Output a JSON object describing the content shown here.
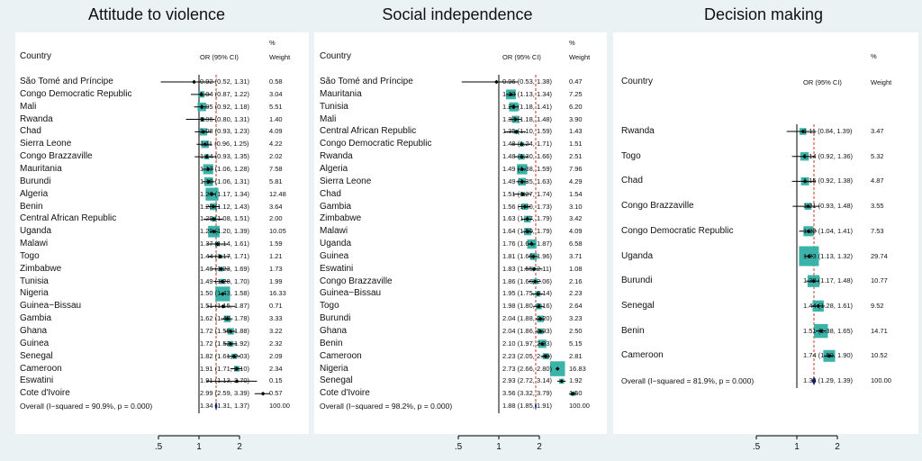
{
  "chart_data": [
    {
      "type": "forest",
      "title": "Attitude to violence",
      "columns": {
        "country": "Country",
        "or": "OR (95% CI)",
        "weight_pct": "%",
        "weight": "Weight"
      },
      "x_ticks": [
        ".5",
        "1",
        "2"
      ],
      "x_tick_values": [
        0.5,
        1,
        2
      ],
      "xlim_log": [
        0.5,
        4
      ],
      "overall_estimate": 1.34,
      "studies": [
        {
          "country": "São Tomé and Príncipe",
          "or": 0.92,
          "lo": 0.52,
          "hi": 1.31,
          "ci_text": "0.92 (0.52, 1.31)",
          "weight": "0.58"
        },
        {
          "country": "Congo Democratic Republic",
          "or": 1.04,
          "lo": 0.87,
          "hi": 1.22,
          "ci_text": "1.04 (0.87, 1.22)",
          "weight": "3.04"
        },
        {
          "country": "Mali",
          "or": 1.05,
          "lo": 0.92,
          "hi": 1.18,
          "ci_text": "1.05 (0.92, 1.18)",
          "weight": "5.51"
        },
        {
          "country": "Rwanda",
          "or": 1.06,
          "lo": 0.8,
          "hi": 1.31,
          "ci_text": "1.06 (0.80, 1.31)",
          "weight": "1.40"
        },
        {
          "country": "Chad",
          "or": 1.08,
          "lo": 0.93,
          "hi": 1.23,
          "ci_text": "1.08 (0.93, 1.23)",
          "weight": "4.09"
        },
        {
          "country": "Sierra Leone",
          "or": 1.11,
          "lo": 0.96,
          "hi": 1.25,
          "ci_text": "1.11 (0.96, 1.25)",
          "weight": "4.22"
        },
        {
          "country": "Congo Brazzaville",
          "or": 1.14,
          "lo": 0.93,
          "hi": 1.35,
          "ci_text": "1.14 (0.93, 1.35)",
          "weight": "2.02"
        },
        {
          "country": "Mauritania",
          "or": 1.17,
          "lo": 1.06,
          "hi": 1.28,
          "ci_text": "1.17 (1.06, 1.28)",
          "weight": "7.58"
        },
        {
          "country": "Burundi",
          "or": 1.18,
          "lo": 1.06,
          "hi": 1.31,
          "ci_text": "1.18 (1.06, 1.31)",
          "weight": "5.81"
        },
        {
          "country": "Algeria",
          "or": 1.25,
          "lo": 1.17,
          "hi": 1.34,
          "ci_text": "1.25 (1.17, 1.34)",
          "weight": "12.48"
        },
        {
          "country": "Benin",
          "or": 1.28,
          "lo": 1.12,
          "hi": 1.43,
          "ci_text": "1.28 (1.12, 1.43)",
          "weight": "3.64"
        },
        {
          "country": "Central African Republic",
          "or": 1.29,
          "lo": 1.08,
          "hi": 1.51,
          "ci_text": "1.29 (1.08, 1.51)",
          "weight": "2.00"
        },
        {
          "country": "Uganda",
          "or": 1.29,
          "lo": 1.2,
          "hi": 1.39,
          "ci_text": "1.29 (1.20, 1.39)",
          "weight": "10.05"
        },
        {
          "country": "Malawi",
          "or": 1.37,
          "lo": 1.14,
          "hi": 1.61,
          "ci_text": "1.37 (1.14, 1.61)",
          "weight": "1.59"
        },
        {
          "country": "Togo",
          "or": 1.44,
          "lo": 1.17,
          "hi": 1.71,
          "ci_text": "1.44 (1.17, 1.71)",
          "weight": "1.21"
        },
        {
          "country": "Zimbabwe",
          "or": 1.46,
          "lo": 1.23,
          "hi": 1.69,
          "ci_text": "1.46 (1.23, 1.69)",
          "weight": "1.73"
        },
        {
          "country": "Tunisia",
          "or": 1.49,
          "lo": 1.28,
          "hi": 1.7,
          "ci_text": "1.49 (1.28, 1.70)",
          "weight": "1.99"
        },
        {
          "country": "Nigeria",
          "or": 1.5,
          "lo": 1.43,
          "hi": 1.58,
          "ci_text": "1.50 (1.43, 1.58)",
          "weight": "16.33"
        },
        {
          "country": "Guinea−Bissau",
          "or": 1.51,
          "lo": 1.15,
          "hi": 1.87,
          "ci_text": "1.51 (1.15, 1.87)",
          "weight": "0.71"
        },
        {
          "country": "Gambia",
          "or": 1.62,
          "lo": 1.45,
          "hi": 1.78,
          "ci_text": "1.62 (1.45, 1.78)",
          "weight": "3.33"
        },
        {
          "country": "Ghana",
          "or": 1.72,
          "lo": 1.55,
          "hi": 1.88,
          "ci_text": "1.72 (1.55, 1.88)",
          "weight": "3.22"
        },
        {
          "country": "Guinea",
          "or": 1.72,
          "lo": 1.52,
          "hi": 1.92,
          "ci_text": "1.72 (1.52, 1.92)",
          "weight": "2.32"
        },
        {
          "country": "Senegal",
          "or": 1.82,
          "lo": 1.61,
          "hi": 2.03,
          "ci_text": "1.82 (1.61, 2.03)",
          "weight": "2.09"
        },
        {
          "country": "Cameroon",
          "or": 1.91,
          "lo": 1.71,
          "hi": 2.1,
          "ci_text": "1.91 (1.71, 2.10)",
          "weight": "2.34"
        },
        {
          "country": "Eswatini",
          "or": 1.91,
          "lo": 1.13,
          "hi": 2.7,
          "ci_text": "1.91 (1.13, 2.70)",
          "weight": "0.15"
        },
        {
          "country": "Cote d'Ivoire",
          "or": 2.99,
          "lo": 2.59,
          "hi": 3.39,
          "ci_text": "2.99 (2.59, 3.39)",
          "weight": "0.57"
        }
      ],
      "overall": {
        "label": "Overall  (I−squared = 90.9%, p = 0.000)",
        "or": 1.34,
        "lo": 1.31,
        "hi": 1.37,
        "ci_text": "1.34 (1.31, 1.37)",
        "weight": "100.00"
      }
    },
    {
      "type": "forest",
      "title": "Social independence",
      "columns": {
        "country": "Country",
        "or": "OR (95% CI)",
        "weight_pct": "%",
        "weight": "Weight"
      },
      "x_ticks": [
        ".5",
        "1",
        "2"
      ],
      "x_tick_values": [
        0.5,
        1,
        2
      ],
      "xlim_log": [
        0.5,
        4
      ],
      "overall_estimate": 1.88,
      "studies": [
        {
          "country": "São Tomé and Príncipe",
          "or": 0.96,
          "lo": 0.53,
          "hi": 1.38,
          "ci_text": "0.96 (0.53, 1.38)",
          "weight": "0.47"
        },
        {
          "country": "Mauritania",
          "or": 1.23,
          "lo": 1.13,
          "hi": 1.34,
          "ci_text": "1.23 (1.13, 1.34)",
          "weight": "7.25"
        },
        {
          "country": "Tunisia",
          "or": 1.29,
          "lo": 1.18,
          "hi": 1.41,
          "ci_text": "1.29 (1.18, 1.41)",
          "weight": "6.20"
        },
        {
          "country": "Mali",
          "or": 1.33,
          "lo": 1.18,
          "hi": 1.48,
          "ci_text": "1.33 (1.18, 1.48)",
          "weight": "3.90"
        },
        {
          "country": "Central African Republic",
          "or": 1.35,
          "lo": 1.1,
          "hi": 1.59,
          "ci_text": "1.35 (1.10, 1.59)",
          "weight": "1.43"
        },
        {
          "country": "Congo Democratic Republic",
          "or": 1.48,
          "lo": 1.24,
          "hi": 1.71,
          "ci_text": "1.48 (1.24, 1.71)",
          "weight": "1.51"
        },
        {
          "country": "Rwanda",
          "or": 1.48,
          "lo": 1.3,
          "hi": 1.66,
          "ci_text": "1.48 (1.30, 1.66)",
          "weight": "2.51"
        },
        {
          "country": "Algeria",
          "or": 1.49,
          "lo": 1.38,
          "hi": 1.59,
          "ci_text": "1.49 (1.38, 1.59)",
          "weight": "7.96"
        },
        {
          "country": "Sierra Leone",
          "or": 1.49,
          "lo": 1.35,
          "hi": 1.63,
          "ci_text": "1.49 (1.35, 1.63)",
          "weight": "4.29"
        },
        {
          "country": "Chad",
          "or": 1.51,
          "lo": 1.27,
          "hi": 1.74,
          "ci_text": "1.51 (1.27, 1.74)",
          "weight": "1.54"
        },
        {
          "country": "Gambia",
          "or": 1.56,
          "lo": 1.4,
          "hi": 1.73,
          "ci_text": "1.56 (1.40, 1.73)",
          "weight": "3.10"
        },
        {
          "country": "Zimbabwe",
          "or": 1.63,
          "lo": 1.47,
          "hi": 1.79,
          "ci_text": "1.63 (1.47, 1.79)",
          "weight": "3.42"
        },
        {
          "country": "Malawi",
          "or": 1.64,
          "lo": 1.5,
          "hi": 1.79,
          "ci_text": "1.64 (1.50, 1.79)",
          "weight": "4.09"
        },
        {
          "country": "Uganda",
          "or": 1.76,
          "lo": 1.64,
          "hi": 1.87,
          "ci_text": "1.76 (1.64, 1.87)",
          "weight": "6.58"
        },
        {
          "country": "Guinea",
          "or": 1.81,
          "lo": 1.66,
          "hi": 1.96,
          "ci_text": "1.81 (1.66, 1.96)",
          "weight": "3.71"
        },
        {
          "country": "Eswatini",
          "or": 1.83,
          "lo": 1.55,
          "hi": 2.11,
          "ci_text": "1.83 (1.55, 2.11)",
          "weight": "1.08"
        },
        {
          "country": "Congo Brazzaville",
          "or": 1.86,
          "lo": 1.66,
          "hi": 2.06,
          "ci_text": "1.86 (1.66, 2.06)",
          "weight": "2.16"
        },
        {
          "country": "Guinea−Bissau",
          "or": 1.95,
          "lo": 1.75,
          "hi": 2.14,
          "ci_text": "1.95 (1.75, 2.14)",
          "weight": "2.23"
        },
        {
          "country": "Togo",
          "or": 1.98,
          "lo": 1.8,
          "hi": 2.16,
          "ci_text": "1.98 (1.80, 2.16)",
          "weight": "2.64"
        },
        {
          "country": "Burundi",
          "or": 2.04,
          "lo": 1.88,
          "hi": 2.2,
          "ci_text": "2.04 (1.88, 2.20)",
          "weight": "3.23"
        },
        {
          "country": "Ghana",
          "or": 2.04,
          "lo": 1.86,
          "hi": 2.23,
          "ci_text": "2.04 (1.86, 2.23)",
          "weight": "2.50"
        },
        {
          "country": "Benin",
          "or": 2.1,
          "lo": 1.97,
          "hi": 2.23,
          "ci_text": "2.10 (1.97, 2.23)",
          "weight": "5.15"
        },
        {
          "country": "Cameroon",
          "or": 2.23,
          "lo": 2.05,
          "hi": 2.4,
          "ci_text": "2.23 (2.05, 2.40)",
          "weight": "2.81"
        },
        {
          "country": "Nigeria",
          "or": 2.73,
          "lo": 2.66,
          "hi": 2.8,
          "ci_text": "2.73 (2.66, 2.80)",
          "weight": "16.83"
        },
        {
          "country": "Senegal",
          "or": 2.93,
          "lo": 2.72,
          "hi": 3.14,
          "ci_text": "2.93 (2.72, 3.14)",
          "weight": "1.92"
        },
        {
          "country": "Cote d'Ivoire",
          "or": 3.56,
          "lo": 3.32,
          "hi": 3.79,
          "ci_text": "3.56 (3.32, 3.79)",
          "weight": "1.50"
        }
      ],
      "overall": {
        "label": "Overall  (I−squared = 98.2%, p = 0.000)",
        "or": 1.88,
        "lo": 1.85,
        "hi": 1.91,
        "ci_text": "1.88 (1.85, 1.91)",
        "weight": "100.00"
      }
    },
    {
      "type": "forest",
      "title": "Decision making",
      "columns": {
        "country": "Country",
        "or": "OR (95% CI)",
        "weight_pct": "%",
        "weight": "Weight"
      },
      "x_ticks": [
        ".5",
        "1",
        "2"
      ],
      "x_tick_values": [
        0.5,
        1,
        2
      ],
      "xlim_log": [
        0.5,
        4
      ],
      "overall_estimate": 1.34,
      "studies": [
        {
          "country": "Rwanda",
          "or": 1.11,
          "lo": 0.84,
          "hi": 1.39,
          "ci_text": "1.11 (0.84, 1.39)",
          "weight": "3.47"
        },
        {
          "country": "Togo",
          "or": 1.14,
          "lo": 0.92,
          "hi": 1.36,
          "ci_text": "1.14 (0.92, 1.36)",
          "weight": "5.32"
        },
        {
          "country": "Chad",
          "or": 1.15,
          "lo": 0.92,
          "hi": 1.38,
          "ci_text": "1.15 (0.92, 1.38)",
          "weight": "4.87"
        },
        {
          "country": "Congo Brazzaville",
          "or": 1.21,
          "lo": 0.93,
          "hi": 1.48,
          "ci_text": "1.21 (0.93, 1.48)",
          "weight": "3.55"
        },
        {
          "country": "Congo Democratic Republic",
          "or": 1.22,
          "lo": 1.04,
          "hi": 1.41,
          "ci_text": "1.22 (1.04, 1.41)",
          "weight": "7.53"
        },
        {
          "country": "Uganda",
          "or": 1.23,
          "lo": 1.13,
          "hi": 1.32,
          "ci_text": "1.23 (1.13, 1.32)",
          "weight": "29.74"
        },
        {
          "country": "Burundi",
          "or": 1.33,
          "lo": 1.17,
          "hi": 1.48,
          "ci_text": "1.33 (1.17, 1.48)",
          "weight": "10.77"
        },
        {
          "country": "Senegal",
          "or": 1.44,
          "lo": 1.28,
          "hi": 1.61,
          "ci_text": "1.44 (1.28, 1.61)",
          "weight": "9.52"
        },
        {
          "country": "Benin",
          "or": 1.51,
          "lo": 1.38,
          "hi": 1.65,
          "ci_text": "1.51 (1.38, 1.65)",
          "weight": "14.71"
        },
        {
          "country": "Cameroon",
          "or": 1.74,
          "lo": 1.59,
          "hi": 1.9,
          "ci_text": "1.74 (1.59, 1.90)",
          "weight": "10.52"
        }
      ],
      "overall": {
        "label": "Overall  (I−squared = 81.9%, p = 0.000)",
        "or": 1.34,
        "lo": 1.29,
        "hi": 1.39,
        "ci_text": "1.34 (1.29, 1.39)",
        "weight": "100.00"
      }
    }
  ],
  "colors": {
    "background": "#eaf2f3",
    "panel": "#ffffff",
    "box": "#3bb3a8",
    "marker": "#000000",
    "null_line": "#000000",
    "overall_line": "#c0392b",
    "diamond": "#1a237e"
  }
}
